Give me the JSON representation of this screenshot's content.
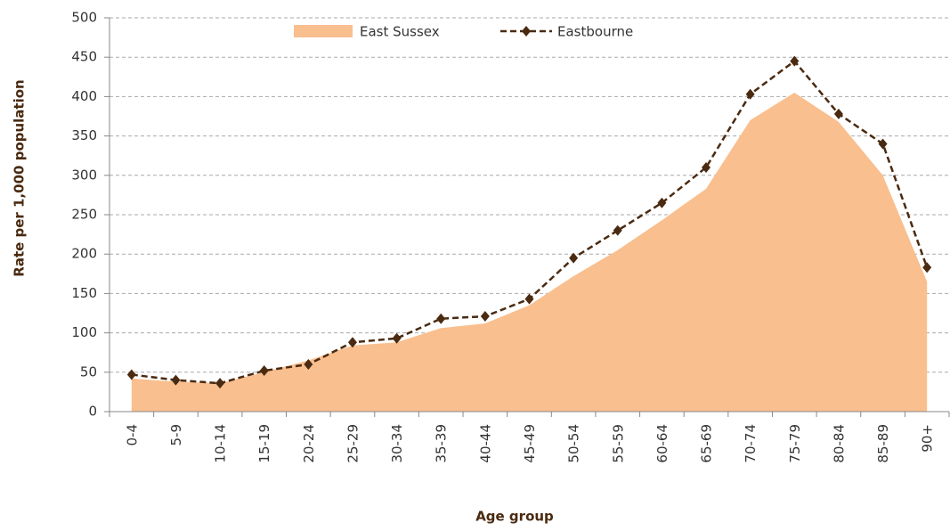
{
  "chart_data": {
    "type": "area_line",
    "x_label": "Age group",
    "y_label": "Rate per 1,000 population",
    "categories": [
      "0-4",
      "5-9",
      "10-14",
      "15-19",
      "20-24",
      "25-29",
      "30-34",
      "35-39",
      "40-44",
      "45-49",
      "50-54",
      "55-59",
      "60-64",
      "65-69",
      "70-74",
      "75-79",
      "80-84",
      "85-89",
      "90+"
    ],
    "series": [
      {
        "name": "East Sussex",
        "color": "#f9bf8f",
        "values": [
          42,
          38,
          36,
          50,
          65,
          84,
          88,
          106,
          112,
          135,
          172,
          205,
          243,
          283,
          370,
          405,
          368,
          300,
          165
        ]
      },
      {
        "name": "Eastbourne",
        "color": "#4a2a10",
        "values": [
          47,
          40,
          36,
          52,
          60,
          88,
          93,
          118,
          121,
          143,
          195,
          230,
          265,
          310,
          403,
          445,
          378,
          340,
          183
        ]
      }
    ],
    "ylim": [
      0,
      500
    ],
    "yticks": [
      0,
      50,
      100,
      150,
      200,
      250,
      300,
      350,
      400,
      450,
      500
    ],
    "grid": true,
    "legend": "top"
  }
}
